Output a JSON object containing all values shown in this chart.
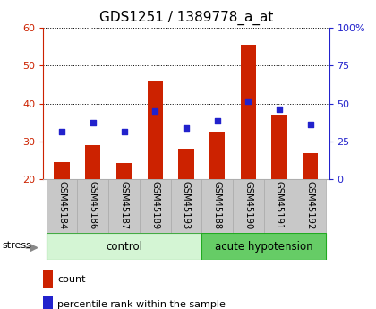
{
  "title": "GDS1251 / 1389778_a_at",
  "samples": [
    "GSM45184",
    "GSM45186",
    "GSM45187",
    "GSM45189",
    "GSM45193",
    "GSM45188",
    "GSM45190",
    "GSM45191",
    "GSM45192"
  ],
  "counts": [
    24.5,
    29.0,
    24.2,
    46.0,
    28.0,
    32.5,
    55.5,
    37.0,
    26.8
  ],
  "percentiles": [
    32.5,
    35.0,
    32.5,
    38.0,
    33.5,
    35.5,
    40.5,
    38.5,
    34.5
  ],
  "group_labels": [
    "control",
    "acute hypotension"
  ],
  "ctrl_count": 5,
  "ylim_left": [
    20,
    60
  ],
  "ylim_right": [
    0,
    100
  ],
  "yticks_left": [
    20,
    30,
    40,
    50,
    60
  ],
  "yticks_right": [
    0,
    25,
    50,
    75,
    100
  ],
  "ytick_labels_right": [
    "0",
    "25",
    "50",
    "75",
    "100%"
  ],
  "bar_color": "#cc2200",
  "dot_color": "#2222cc",
  "bar_bottom": 20,
  "bg_xlabel": "#c8c8c8",
  "bg_group_control": "#d4f5d4",
  "bg_group_acute": "#66cc66",
  "stress_arrow_color": "#888888",
  "title_fontsize": 11,
  "tick_fontsize": 8,
  "label_fontsize": 8.5
}
